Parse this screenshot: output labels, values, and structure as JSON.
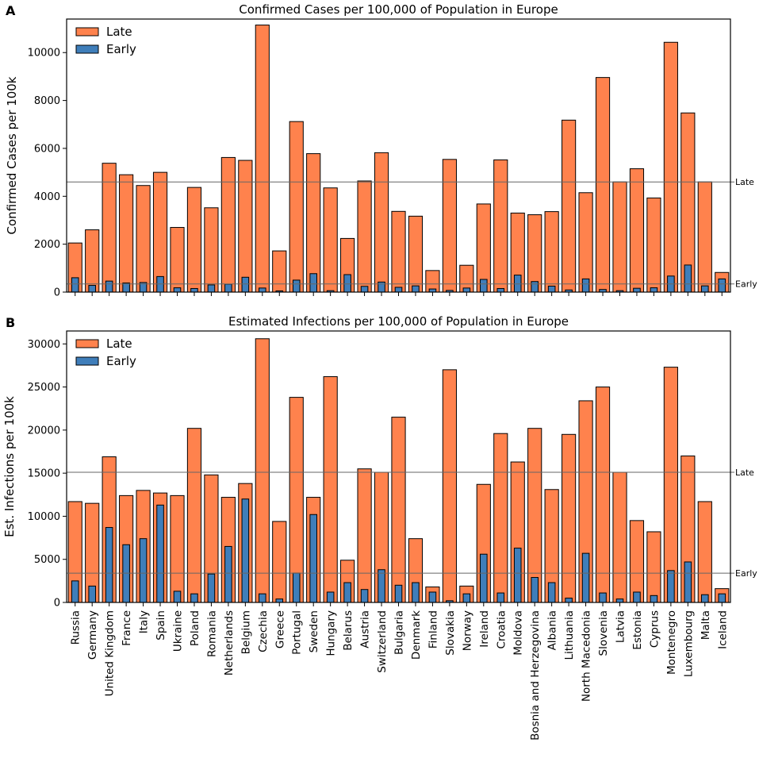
{
  "colors": {
    "late": "#FF824D",
    "early": "#3F7EBA",
    "edge": "#000000",
    "ref_line": "#666666"
  },
  "countries": [
    "Russia",
    "Germany",
    "United Kingdom",
    "France",
    "Italy",
    "Spain",
    "Ukraine",
    "Poland",
    "Romania",
    "Netherlands",
    "Belgium",
    "Czechia",
    "Greece",
    "Portugal",
    "Sweden",
    "Hungary",
    "Belarus",
    "Austria",
    "Switzerland",
    "Bulgaria",
    "Denmark",
    "Finland",
    "Slovakia",
    "Norway",
    "Ireland",
    "Croatia",
    "Moldova",
    "Bosnia and Herzegovina",
    "Albania",
    "Lithuania",
    "North Macedonia",
    "Slovenia",
    "Latvia",
    "Estonia",
    "Cyprus",
    "Montenegro",
    "Luxembourg",
    "Malta",
    "Iceland"
  ],
  "chart_data": [
    {
      "type": "bar",
      "panel": "A",
      "title": "Confirmed Cases per 100,000 of Population in Europe",
      "ylabel": "Confirmed Cases per 100k",
      "xlabel": "",
      "ylim": [
        0,
        11400
      ],
      "yticks": [
        0,
        2000,
        4000,
        6000,
        8000,
        10000
      ],
      "legend": [
        "Late",
        "Early"
      ],
      "reference_lines": [
        {
          "label": "Late",
          "value": 4600
        },
        {
          "label": "Early",
          "value": 340
        }
      ],
      "series": [
        {
          "name": "Late",
          "values": [
            2050,
            2600,
            5380,
            4900,
            4450,
            5000,
            2700,
            4370,
            3520,
            5620,
            5500,
            11150,
            1720,
            7120,
            5780,
            4350,
            2240,
            4640,
            5820,
            3370,
            3170,
            900,
            5540,
            1120,
            3680,
            5520,
            3300,
            3230,
            3360,
            7180,
            4150,
            8960,
            4600,
            5150,
            3930,
            10430,
            7480,
            4600,
            820
          ]
        },
        {
          "name": "Early",
          "values": [
            600,
            280,
            460,
            380,
            400,
            650,
            180,
            150,
            300,
            330,
            620,
            170,
            50,
            500,
            770,
            60,
            730,
            240,
            420,
            200,
            260,
            130,
            70,
            170,
            530,
            150,
            710,
            440,
            250,
            90,
            550,
            110,
            60,
            160,
            180,
            670,
            1130,
            260,
            550
          ]
        }
      ]
    },
    {
      "type": "bar",
      "panel": "B",
      "title": "Estimated Infections per 100,000 of Population in Europe",
      "ylabel": "Est. Infections per 100k",
      "xlabel": "",
      "ylim": [
        0,
        31500
      ],
      "yticks": [
        0,
        5000,
        10000,
        15000,
        20000,
        25000,
        30000
      ],
      "legend": [
        "Late",
        "Early"
      ],
      "reference_lines": [
        {
          "label": "Late",
          "value": 15100
        },
        {
          "label": "Early",
          "value": 3400
        }
      ],
      "series": [
        {
          "name": "Late",
          "values": [
            11700,
            11500,
            16900,
            12400,
            13000,
            12700,
            12400,
            20200,
            14800,
            12200,
            13800,
            30600,
            9400,
            23800,
            12200,
            26200,
            4900,
            15500,
            15100,
            21500,
            7400,
            1800,
            27000,
            1900,
            13700,
            19600,
            16300,
            20200,
            13100,
            19500,
            23400,
            25000,
            15100,
            9500,
            8200,
            27300,
            17000,
            11700,
            1600
          ]
        },
        {
          "name": "Early",
          "values": [
            2500,
            1900,
            8700,
            6700,
            7400,
            11300,
            1300,
            1000,
            3300,
            6500,
            12000,
            1000,
            400,
            3400,
            10200,
            1200,
            2300,
            1500,
            3800,
            2000,
            2300,
            1200,
            200,
            1000,
            5600,
            1100,
            6300,
            2900,
            2300,
            500,
            5700,
            1100,
            400,
            1200,
            800,
            3700,
            4700,
            900,
            1000
          ]
        }
      ]
    }
  ]
}
